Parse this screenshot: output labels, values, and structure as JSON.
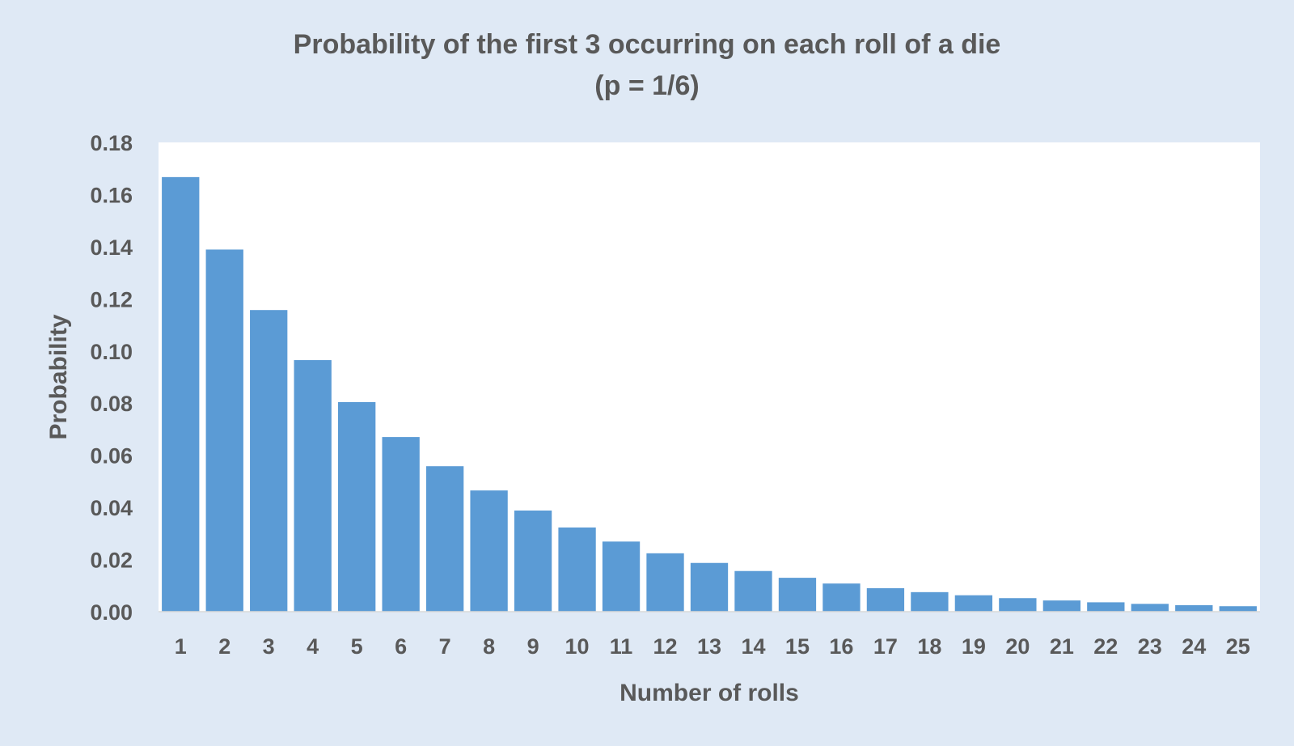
{
  "chart_data": {
    "type": "bar",
    "title": "Probability of the first 3 occurring on each roll of a die",
    "subtitle": "(p = 1/6)",
    "xlabel": "Number of rolls",
    "ylabel": "Probability",
    "categories": [
      "1",
      "2",
      "3",
      "4",
      "5",
      "6",
      "7",
      "8",
      "9",
      "10",
      "11",
      "12",
      "13",
      "14",
      "15",
      "16",
      "17",
      "18",
      "19",
      "20",
      "21",
      "22",
      "23",
      "24",
      "25"
    ],
    "values": [
      0.1667,
      0.1389,
      0.1157,
      0.0965,
      0.0804,
      0.067,
      0.0558,
      0.0465,
      0.0388,
      0.0323,
      0.0269,
      0.0224,
      0.0187,
      0.0156,
      0.013,
      0.0108,
      0.009,
      0.0075,
      0.0063,
      0.0052,
      0.0043,
      0.0036,
      0.003,
      0.0025,
      0.0021
    ],
    "y_ticks": [
      "0.00",
      "0.02",
      "0.04",
      "0.06",
      "0.08",
      "0.10",
      "0.12",
      "0.14",
      "0.16",
      "0.18"
    ],
    "ylim": [
      0,
      0.18
    ],
    "grid": false,
    "legend": "none",
    "colors": {
      "bar": "#5b9bd5",
      "plot_background": "#ffffff",
      "chart_background": "#dfe9f5",
      "text": "#595959"
    }
  }
}
